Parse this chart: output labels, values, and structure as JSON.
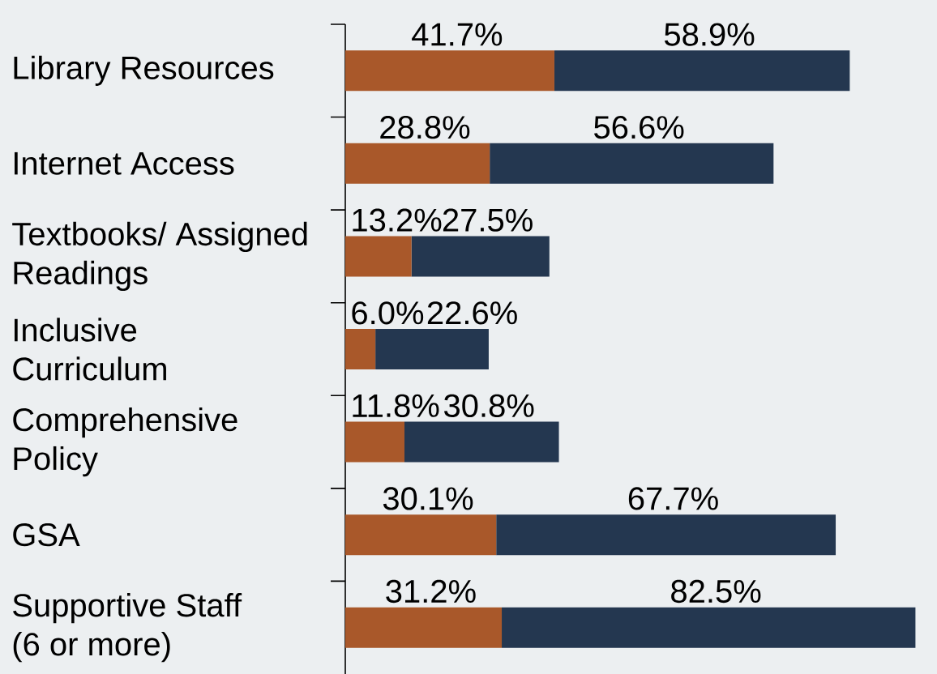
{
  "chart_data": {
    "type": "bar",
    "orientation": "horizontal",
    "stacked": true,
    "categories": [
      "Library Resources",
      "Internet Access",
      "Textbooks/ Assigned Readings",
      "Inclusive Curriculum",
      "Comprehensive Policy",
      "GSA",
      "Supportive Staff (6 or more)"
    ],
    "series": [
      {
        "color": "#a9582a",
        "values": [
          41.7,
          28.8,
          13.2,
          6.0,
          11.8,
          30.1,
          31.2
        ],
        "value_labels": [
          "41.7%",
          "28.8%",
          "13.2%",
          "6.0%",
          "11.8%",
          "30.1%",
          "31.2%"
        ]
      },
      {
        "color": "#243750",
        "values": [
          58.9,
          56.6,
          27.5,
          22.6,
          30.8,
          67.7,
          82.5
        ],
        "value_labels": [
          "58.9%",
          "56.6%",
          "27.5%",
          "22.6%",
          "30.8%",
          "67.7%",
          "82.5%"
        ]
      }
    ],
    "xlim": [
      0,
      118
    ],
    "tick_labels": "y"
  }
}
